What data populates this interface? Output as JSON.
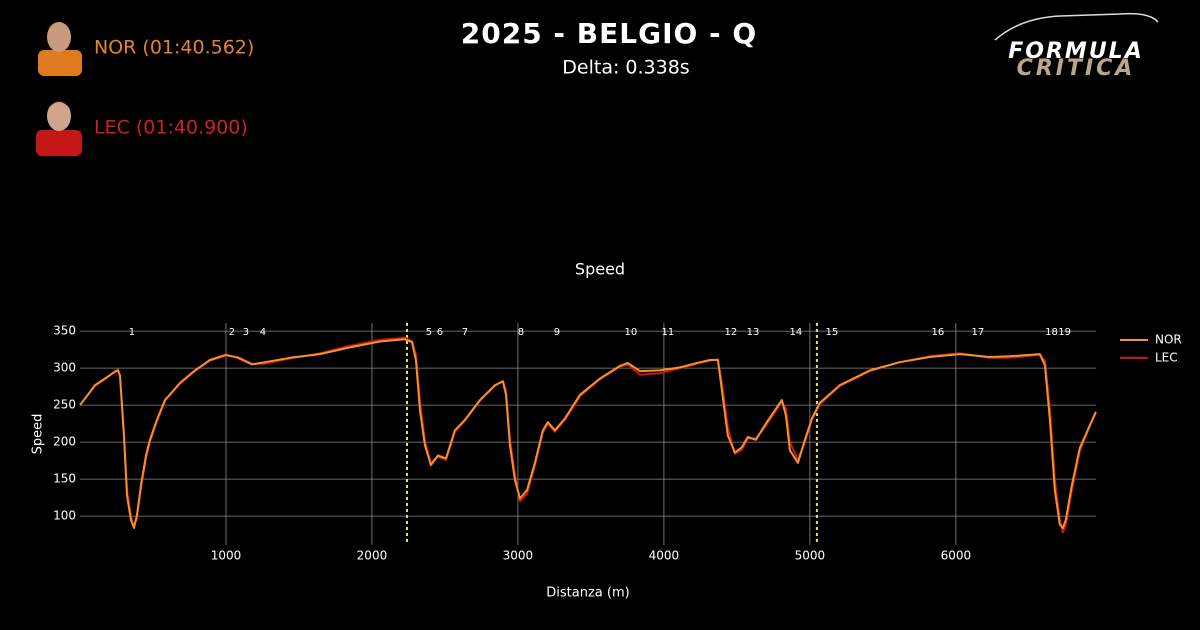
{
  "header": {
    "title": "2025 - BELGIO - Q",
    "subtitle": "Delta: 0.338s",
    "drivers": [
      {
        "label": "NOR (01:40.562)",
        "color": "#e8822a"
      },
      {
        "label": "LEC (01:40.900)",
        "color": "#d21f1f"
      }
    ],
    "logo": [
      "FORMULA",
      "CRITICA"
    ]
  },
  "chart_data": {
    "type": "line",
    "title": "Speed",
    "x_label": "Distanza (m)",
    "y_label": "Speed",
    "x": [
      0,
      103,
      171,
      240,
      260,
      274,
      301,
      322,
      349,
      370,
      390,
      418,
      452,
      479,
      527,
      582,
      685,
      788,
      890,
      1000,
      1082,
      1178,
      1267,
      1438,
      1644,
      1849,
      2055,
      2226,
      2274,
      2301,
      2329,
      2363,
      2404,
      2452,
      2507,
      2568,
      2637,
      2740,
      2842,
      2897,
      2918,
      2945,
      2979,
      3014,
      3062,
      3116,
      3171,
      3205,
      3253,
      3322,
      3425,
      3562,
      3699,
      3753,
      3836,
      3973,
      4110,
      4247,
      4315,
      4370,
      4397,
      4438,
      4486,
      4534,
      4575,
      4630,
      4692,
      4760,
      4808,
      4836,
      4863,
      4918,
      4966,
      5014,
      5068,
      5205,
      5411,
      5616,
      5822,
      6027,
      6233,
      6370,
      6575,
      6610,
      6644,
      6678,
      6712,
      6733,
      6753,
      6795,
      6849,
      6918,
      6959
    ],
    "series": [
      {
        "name": "NOR",
        "color": "#f0922e",
        "values": [
          250,
          277,
          286,
          295,
          297,
          290,
          209,
          128,
          95,
          84,
          101,
          142,
          182,
          203,
          230,
          257,
          280,
          297,
          311,
          318,
          314,
          305,
          308,
          314,
          319,
          328,
          336,
          339,
          335,
          311,
          243,
          196,
          169,
          182,
          178,
          216,
          230,
          257,
          277,
          282,
          264,
          196,
          149,
          124,
          135,
          172,
          216,
          227,
          216,
          232,
          264,
          286,
          303,
          307,
          296,
          297,
          301,
          308,
          311,
          311,
          270,
          209,
          186,
          193,
          207,
          203,
          223,
          243,
          257,
          236,
          189,
          172,
          203,
          232,
          253,
          277,
          297,
          308,
          315,
          319,
          315,
          316,
          319,
          304,
          230,
          135,
          89,
          84,
          95,
          142,
          192,
          223,
          241
        ]
      },
      {
        "name": "LEC",
        "color": "#cc1414",
        "values": [
          250,
          276,
          285,
          296,
          298,
          289,
          215,
          135,
          100,
          86,
          98,
          138,
          178,
          200,
          228,
          256,
          279,
          296,
          310,
          317,
          315,
          306,
          306,
          313,
          320,
          330,
          338,
          341,
          337,
          318,
          255,
          202,
          172,
          180,
          176,
          214,
          229,
          256,
          276,
          283,
          270,
          205,
          156,
          120,
          130,
          168,
          213,
          225,
          214,
          230,
          262,
          285,
          302,
          305,
          291,
          293,
          300,
          307,
          310,
          312,
          280,
          220,
          184,
          190,
          205,
          205,
          220,
          240,
          255,
          245,
          200,
          176,
          200,
          230,
          251,
          276,
          296,
          308,
          316,
          320,
          314,
          314,
          318,
          310,
          245,
          150,
          95,
          78,
          88,
          135,
          188,
          222,
          240
        ]
      }
    ],
    "xlim": [
      0,
      6960
    ],
    "ylim": [
      61,
      361
    ],
    "xticks": [
      1000,
      2000,
      3000,
      4000,
      5000,
      6000
    ],
    "yticks": [
      100,
      150,
      200,
      250,
      300,
      350
    ],
    "grid": true,
    "legend": "right",
    "sector_lines": [
      2240,
      5048
    ],
    "sector_color": "#e8e83a",
    "corners": [
      {
        "label": "1",
        "distance": 356
      },
      {
        "label": "2",
        "distance": 1041
      },
      {
        "label": "3",
        "distance": 1137
      },
      {
        "label": "4",
        "distance": 1253
      },
      {
        "label": "5",
        "distance": 2390
      },
      {
        "label": "6",
        "distance": 2466
      },
      {
        "label": "7",
        "distance": 2637
      },
      {
        "label": "8",
        "distance": 3021
      },
      {
        "label": "9",
        "distance": 3267
      },
      {
        "label": "10",
        "distance": 3774
      },
      {
        "label": "11",
        "distance": 4027
      },
      {
        "label": "12",
        "distance": 4459
      },
      {
        "label": "13",
        "distance": 4610
      },
      {
        "label": "14",
        "distance": 4904
      },
      {
        "label": "15",
        "distance": 5151
      },
      {
        "label": "16",
        "distance": 5877
      },
      {
        "label": "17",
        "distance": 6151
      },
      {
        "label": "18",
        "distance": 6655
      },
      {
        "label": "19",
        "distance": 6745
      }
    ]
  }
}
